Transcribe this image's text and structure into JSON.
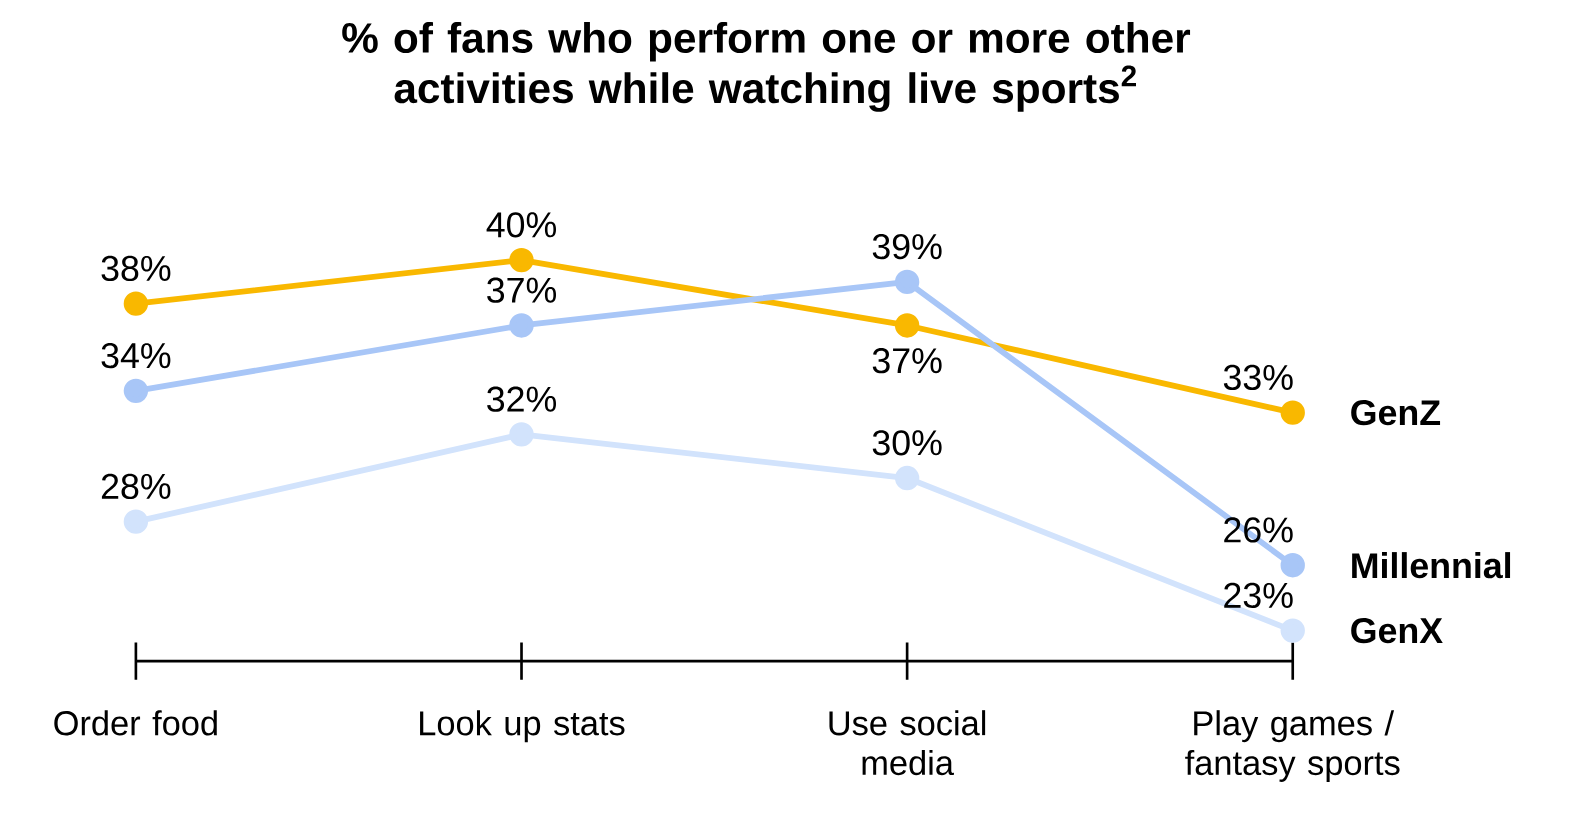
{
  "chart_data": {
    "type": "line",
    "title": "% of fans who perform one or more other activities while watching live sports$^{2}$",
    "categories": [
      "Order food",
      "Look up stats",
      "Use social media",
      "Play games / fantasy sports"
    ],
    "marker": "circle",
    "series": [
      {
        "name": "GenZ",
        "color": "#f9b800",
        "values": [
          38,
          40,
          37,
          33
        ],
        "value_labels": [
          "38%",
          "40%",
          "37%",
          "33%"
        ]
      },
      {
        "name": "Millennial",
        "color": "#a8c6f7",
        "values": [
          34,
          37,
          39,
          26
        ],
        "value_labels": [
          "34%",
          "37%",
          "39%",
          "26%"
        ]
      },
      {
        "name": "GenX",
        "color": "#d2e3fc",
        "values": [
          28,
          32,
          30,
          23
        ],
        "value_labels": [
          "28%",
          "32%",
          "30%",
          "23%"
        ]
      }
    ]
  }
}
